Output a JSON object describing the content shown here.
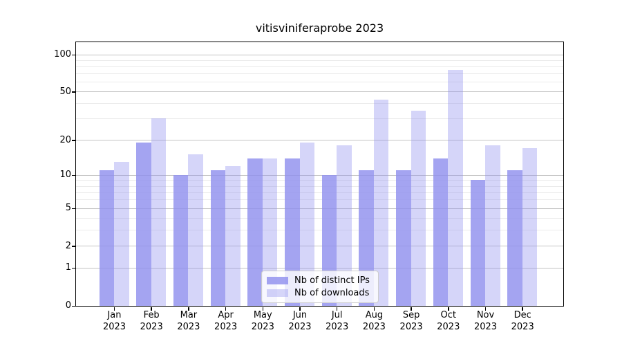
{
  "title": "vitisviniferaprobe 2023",
  "chart_data": {
    "type": "bar",
    "title": "vitisviniferaprobe 2023",
    "year": "2023",
    "months": [
      "Jan",
      "Feb",
      "Mar",
      "Apr",
      "May",
      "Jun",
      "Jul",
      "Aug",
      "Sep",
      "Oct",
      "Nov",
      "Dec"
    ],
    "categories": [
      "Jan 2023",
      "Feb 2023",
      "Mar 2023",
      "Apr 2023",
      "May 2023",
      "Jun 2023",
      "Jul 2023",
      "Aug 2023",
      "Sep 2023",
      "Oct 2023",
      "Nov 2023",
      "Dec 2023"
    ],
    "series": [
      {
        "name": "Nb of distinct IPs",
        "color": "#9090ee",
        "alpha": 0.82,
        "values": [
          11,
          19,
          10,
          11,
          14,
          14,
          10,
          11,
          11,
          14,
          9,
          11
        ]
      },
      {
        "name": "Nb of downloads",
        "color": "#9090ee",
        "alpha": 0.38,
        "values": [
          13,
          30,
          15,
          12,
          14,
          19,
          18,
          43,
          35,
          75,
          18,
          17
        ]
      }
    ],
    "yscale": "log1p",
    "ylim": [
      0,
      126
    ],
    "y_major_ticks": [
      100,
      50,
      20,
      10,
      5,
      2,
      1,
      0
    ],
    "y_minor_ticks": [
      3,
      4,
      6,
      7,
      8,
      9,
      30,
      40,
      60,
      70,
      80,
      90
    ],
    "grid": "on",
    "legend_position": "lower-center",
    "axis_color": "#000000",
    "major_grid_color": "#c2c2c2",
    "minor_grid_color": "#ebebeb"
  }
}
